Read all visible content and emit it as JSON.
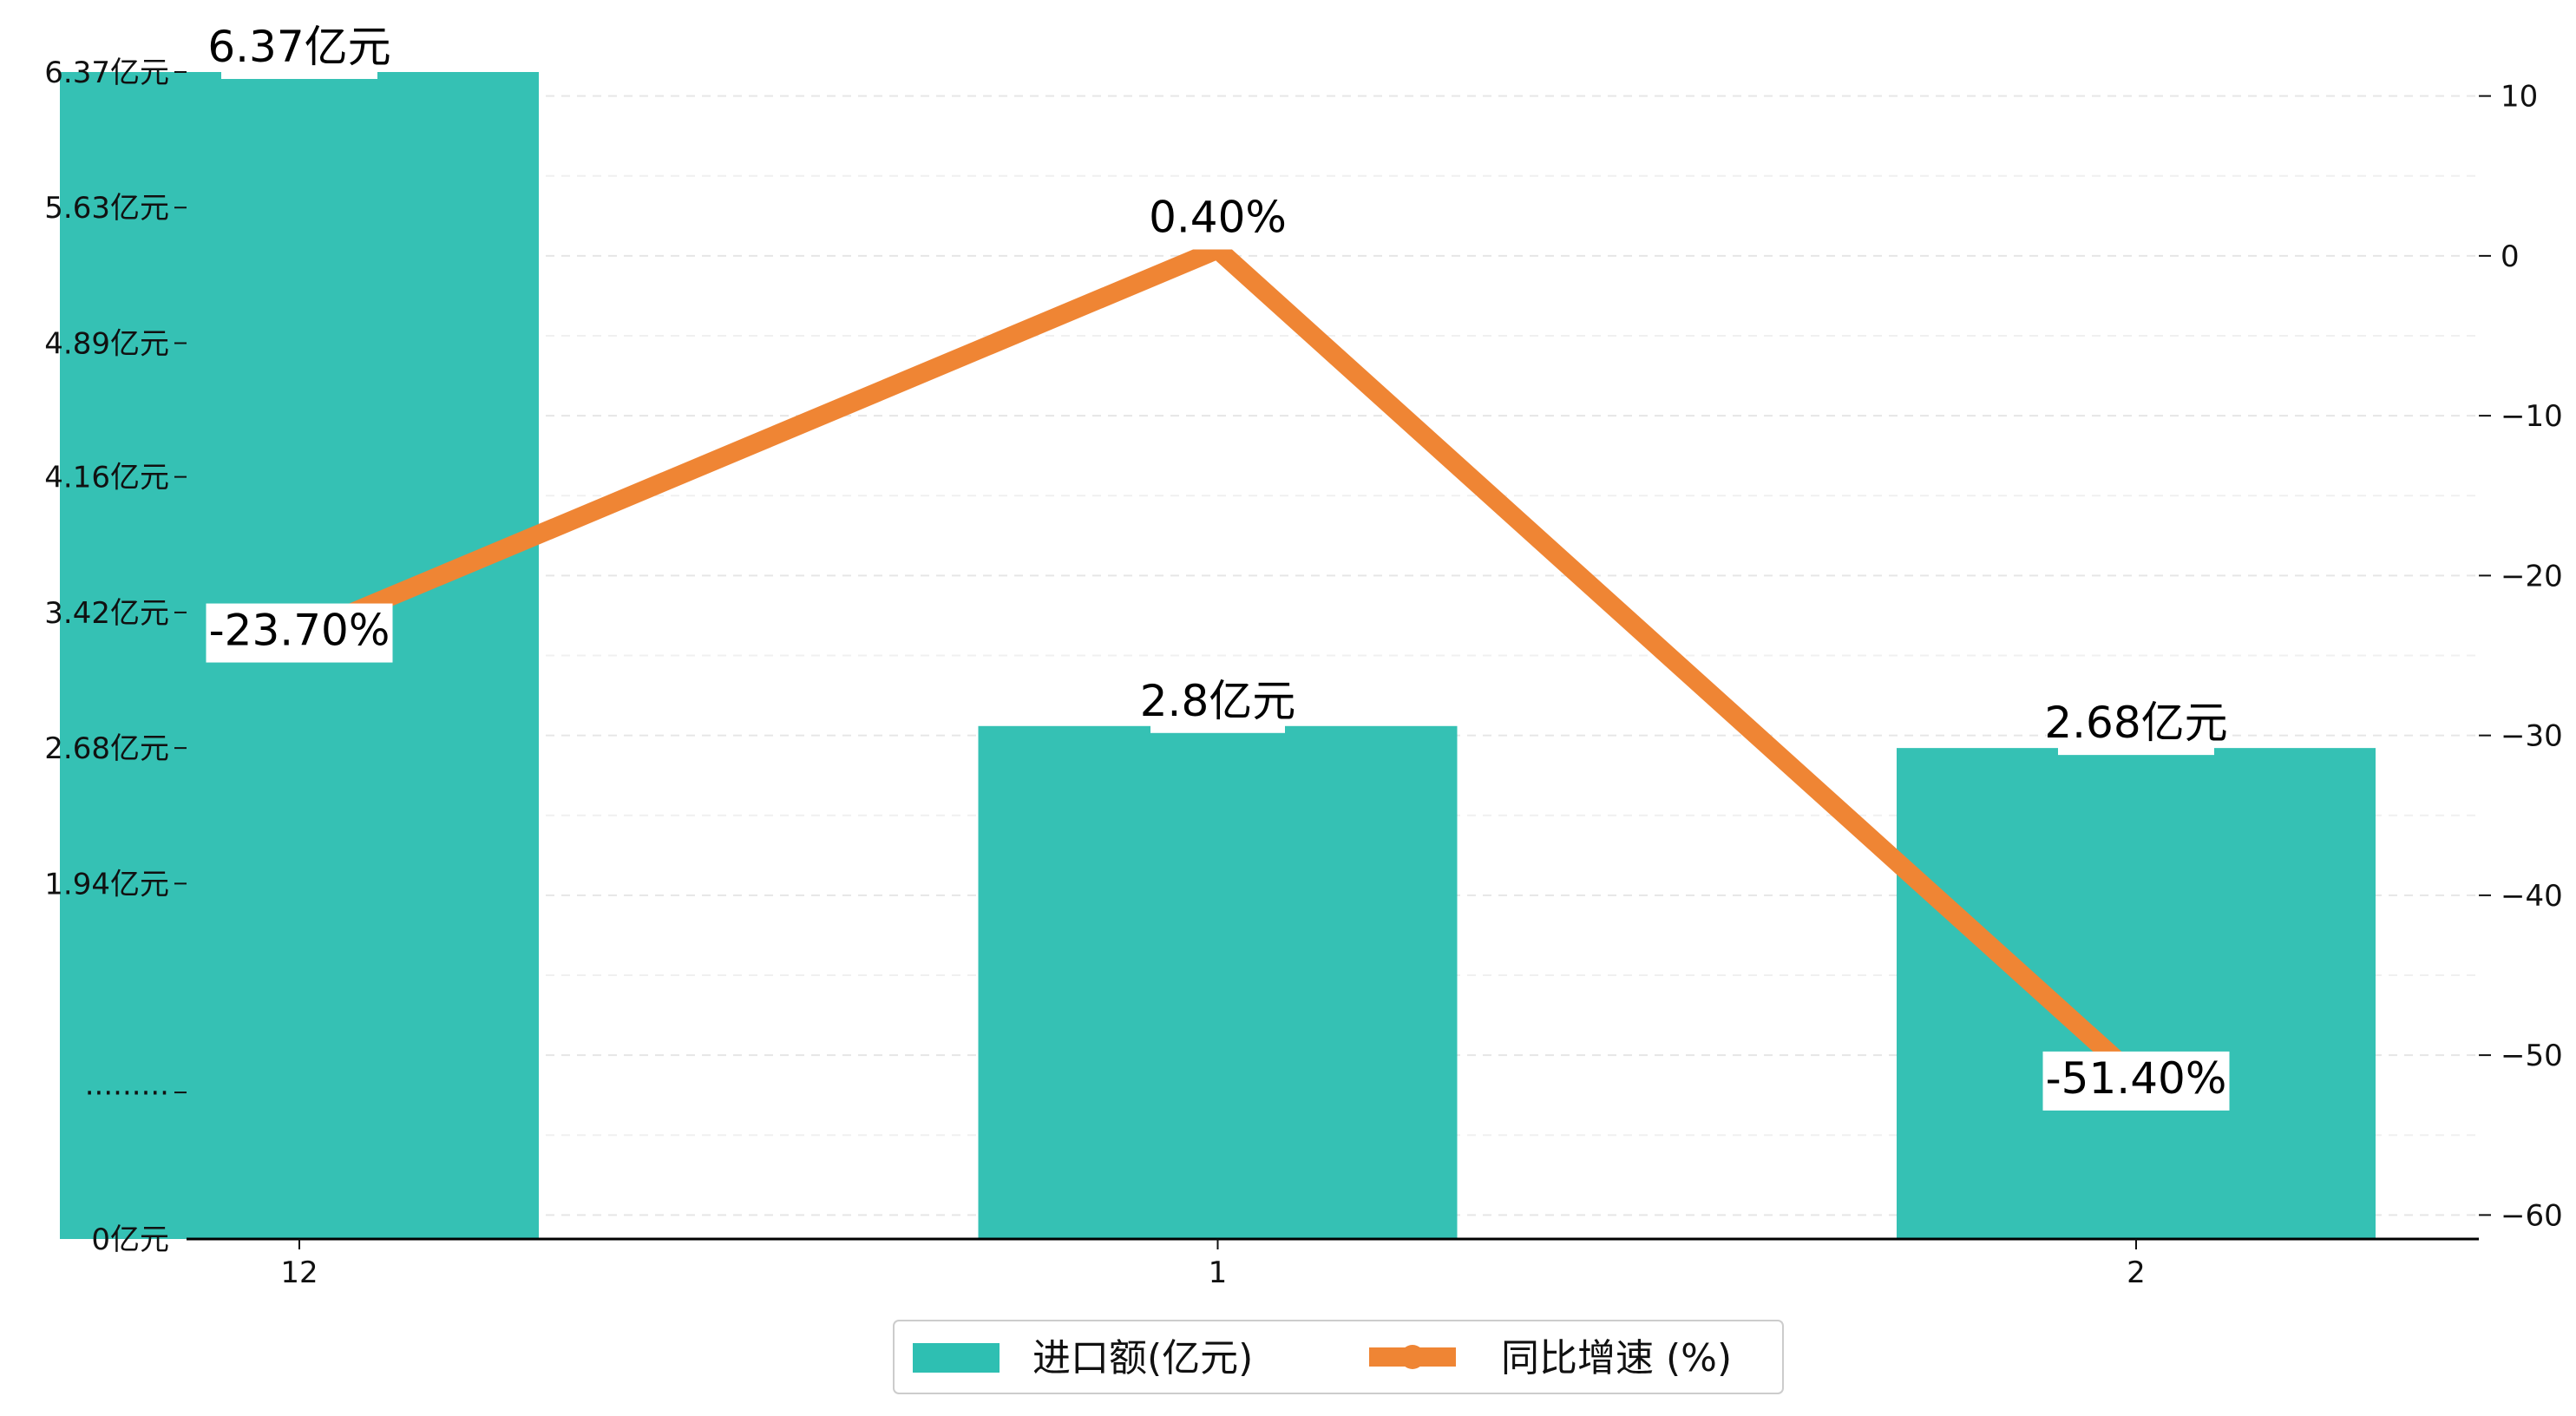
{
  "chart_data": {
    "type": "bar",
    "title": "",
    "xlabel": "",
    "ylabel": "",
    "categories": [
      "12",
      "1",
      "2"
    ],
    "y_left": {
      "ticks": [
        {
          "value": 0,
          "label": "0亿元"
        },
        {
          "value": 0.8,
          "label": "·········"
        },
        {
          "value": 1.94,
          "label": "1.94亿元"
        },
        {
          "value": 2.68,
          "label": "2.68亿元"
        },
        {
          "value": 3.42,
          "label": "3.42亿元"
        },
        {
          "value": 4.16,
          "label": "4.16亿元"
        },
        {
          "value": 4.89,
          "label": "4.89亿元"
        },
        {
          "value": 5.63,
          "label": "5.63亿元"
        },
        {
          "value": 6.37,
          "label": "6.37亿元"
        }
      ],
      "range": [
        0,
        6.37
      ],
      "break": true
    },
    "y_right": {
      "ticks": [
        10,
        0,
        -10,
        -20,
        -30,
        -40,
        -50,
        -60
      ],
      "range": [
        -61.5,
        11.5
      ]
    },
    "series": [
      {
        "name": "进口额(亿元)",
        "kind": "bar",
        "axis": "left",
        "color": "#2ebfb2",
        "values": [
          6.37,
          2.8,
          2.68
        ],
        "labels": [
          "6.37亿元",
          "2.8亿元",
          "2.68亿元"
        ]
      },
      {
        "name": "同比增速 (%)",
        "kind": "line",
        "axis": "right",
        "color": "#ef8534",
        "values": [
          -23.7,
          0.4,
          -51.4
        ],
        "labels": [
          "-23.70%",
          "0.40%",
          "-51.40%"
        ]
      }
    ],
    "grid": {
      "horizontal": true,
      "style": "dashed"
    },
    "legend": {
      "position": "bottom-center"
    }
  }
}
